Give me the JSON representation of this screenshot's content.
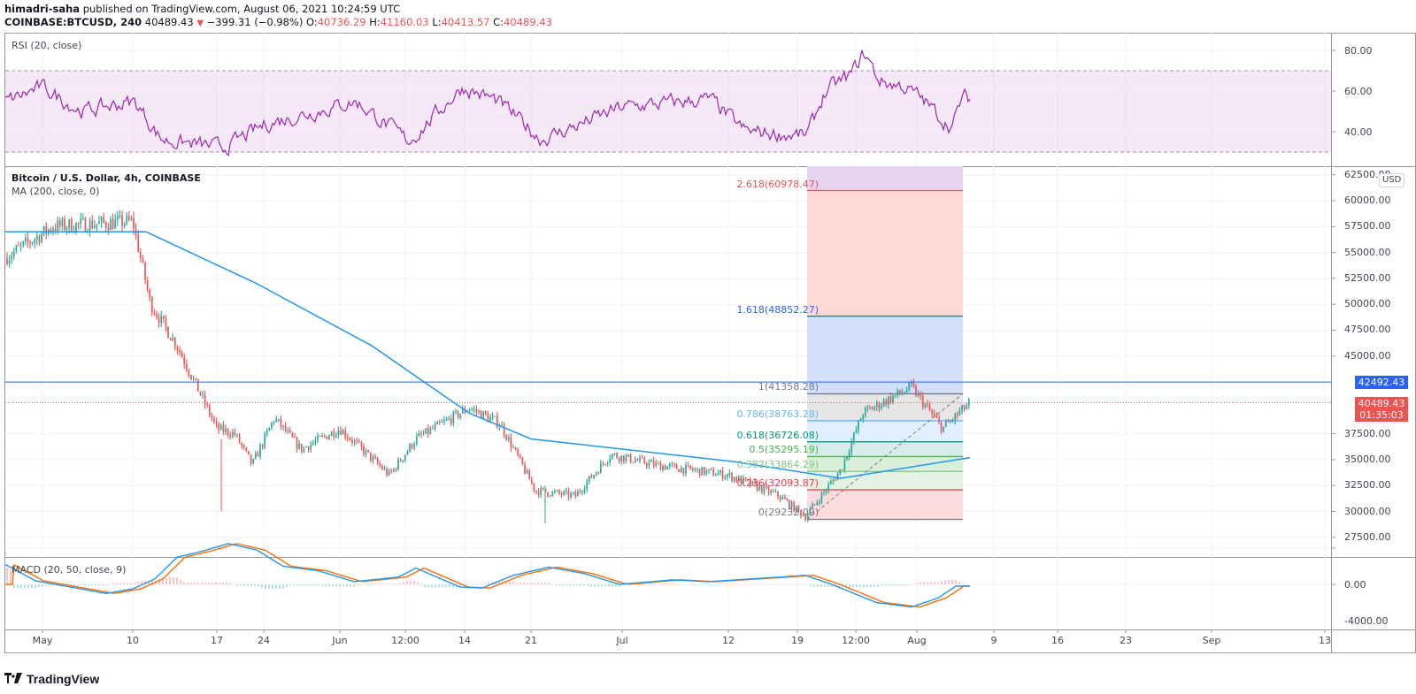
{
  "header": {
    "author": "himadri-saha",
    "published": " published on TradingView.com, August 06, 2021 10:24:59 UTC",
    "symbol": "COINBASE:BTCUSD, 240",
    "last": " 40489.43 ",
    "change_arrow": "▼",
    "change": " −399.31 (−0.98%) ",
    "o_label": "O:",
    "o": "40736.29",
    "h_label": " H:",
    "h": "41160.03",
    "l_label": " L:",
    "l": "40413.57",
    "c_label": " C:",
    "c": "40489.43"
  },
  "rsi": {
    "legend": "RSI (20, close)",
    "axis": [
      "80.00",
      "60.00",
      "40.00"
    ]
  },
  "main": {
    "legend_title": "Bitcoin / U.S. Dollar, 4h, COINBASE",
    "legend_ma": "MA (200, close, 0)",
    "currency": "USD",
    "axis": [
      "62500.00",
      "60000.00",
      "57500.00",
      "55000.00",
      "52500.00",
      "50000.00",
      "47500.00",
      "45000.00",
      "37500.00",
      "35000.00",
      "32500.00",
      "30000.00",
      "27500.00"
    ],
    "hline_tag": "42492.43",
    "last_tag": "40489.43",
    "countdown": "01:35:03"
  },
  "fib": [
    {
      "label": "2.618(60978.47)",
      "color": "#ef5350"
    },
    {
      "label": "1.618(48852.27)",
      "color": "#2962ff"
    },
    {
      "label": "1(41358.28)",
      "color": "#787b86"
    },
    {
      "label": "0.786(38763.28)",
      "color": "#64b5f6"
    },
    {
      "label": "0.618(36726.08)",
      "color": "#089981"
    },
    {
      "label": "0.5(35295.19)",
      "color": "#4caf50"
    },
    {
      "label": "0.382(33864.29)",
      "color": "#81c784"
    },
    {
      "label": "0.236(32093.87)",
      "color": "#f23645"
    },
    {
      "label": "0(29232.09)",
      "color": "#787b86"
    }
  ],
  "macd": {
    "legend": "MACD (20, 50, close, 9)",
    "axis": [
      "0.00",
      "-4000.00"
    ]
  },
  "time_axis": [
    "May",
    "10",
    "17",
    "24",
    "Jun",
    "12:00",
    "14",
    "21",
    "Jul",
    "12",
    "19",
    "12:00",
    "Aug",
    "9",
    "16",
    "23",
    "Sep",
    "13"
  ],
  "logo": "TradingView",
  "colors": {
    "up": "#26a69a",
    "down": "#ef5350",
    "ma": "#2196f3",
    "rsi": "#9c27b0",
    "macd": "#2196f3",
    "signal": "#ff6d00",
    "hline": "#2962ff"
  },
  "chart_data": {
    "type": "candlestick",
    "title": "Bitcoin / U.S. Dollar, 4h, COINBASE",
    "symbol": "COINBASE:BTCUSD",
    "interval": "240",
    "ohlc_last": {
      "open": 40736.29,
      "high": 41160.03,
      "low": 40413.57,
      "close": 40489.43,
      "change": -399.31,
      "change_pct": -0.98
    },
    "x_ticks": [
      "May",
      "10",
      "17",
      "24",
      "Jun",
      "12:00",
      "14",
      "21",
      "Jul",
      "12",
      "19",
      "12:00",
      "Aug",
      "9",
      "16",
      "23",
      "Sep",
      "13"
    ],
    "ylim": [
      26000,
      63000
    ],
    "price_path": [
      {
        "t": "Apr 27",
        "close": 54500
      },
      {
        "t": "May 3",
        "close": 57500
      },
      {
        "t": "May 10",
        "close": 58000
      },
      {
        "t": "May 12",
        "close": 50000
      },
      {
        "t": "May 15",
        "close": 46000
      },
      {
        "t": "May 19",
        "close": 38000
      },
      {
        "t": "May 21",
        "close": 37500
      },
      {
        "t": "May 23",
        "close": 34500
      },
      {
        "t": "May 25",
        "close": 39000
      },
      {
        "t": "May 28",
        "close": 36000
      },
      {
        "t": "Jun 2",
        "close": 38000
      },
      {
        "t": "Jun 8",
        "close": 33500
      },
      {
        "t": "Jun 11",
        "close": 37000
      },
      {
        "t": "Jun 15",
        "close": 40000
      },
      {
        "t": "Jun 18",
        "close": 38500
      },
      {
        "t": "Jun 22",
        "close": 32000
      },
      {
        "t": "Jun 26",
        "close": 31500
      },
      {
        "t": "Jul 1",
        "close": 35500
      },
      {
        "t": "Jul 7",
        "close": 34500
      },
      {
        "t": "Jul 12",
        "close": 33500
      },
      {
        "t": "Jul 17",
        "close": 31500
      },
      {
        "t": "Jul 20",
        "close": 29500
      },
      {
        "t": "Jul 24",
        "close": 34000
      },
      {
        "t": "Jul 26",
        "close": 39500
      },
      {
        "t": "Jul 31",
        "close": 42000
      },
      {
        "t": "Aug 3",
        "close": 38000
      },
      {
        "t": "Aug 6",
        "close": 40489.43
      }
    ],
    "ma200_path": [
      {
        "t": "Apr 27",
        "value": 57000
      },
      {
        "t": "May 12",
        "value": 57000
      },
      {
        "t": "May 24",
        "value": 52000
      },
      {
        "t": "Jun 8",
        "value": 46000
      },
      {
        "t": "Jun 15",
        "value": 39500
      },
      {
        "t": "Jun 22",
        "value": 37000
      },
      {
        "t": "Jul 12",
        "value": 34800
      },
      {
        "t": "Jul 24",
        "value": 33200
      },
      {
        "t": "Aug 6",
        "value": 35200
      }
    ],
    "horizontal_line": 42492.43,
    "fibonacci": {
      "0": 29232.09,
      "0.236": 32093.87,
      "0.382": 33864.29,
      "0.5": 35295.19,
      "0.618": 36726.08,
      "0.786": 38763.28,
      "1": 41358.28,
      "1.618": 48852.27,
      "2.618": 60978.47
    },
    "rsi": {
      "params": "20, close",
      "ylim": [
        25,
        85
      ],
      "bands": [
        30,
        70
      ],
      "ticks": [
        80,
        60,
        40
      ],
      "last": 56
    },
    "macd": {
      "params": "20, 50, close, 9",
      "ticks": [
        0,
        -4000
      ]
    }
  }
}
